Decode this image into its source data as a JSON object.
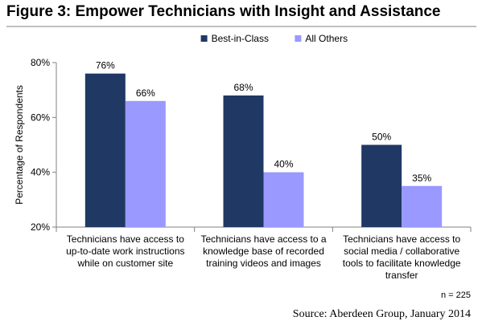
{
  "figure_title": "Figure 3: Empower Technicians with Insight and Assistance",
  "n_note": "n = 225",
  "source": "Source: Aberdeen Group, January 2014",
  "colors": {
    "best_in_class": "#1f3864",
    "all_others": "#9999ff"
  },
  "chart_data": {
    "type": "bar",
    "title": "",
    "ylabel": "Percentage of Respondents",
    "xlabel": "",
    "ylim": [
      20,
      80
    ],
    "yticks": [
      20,
      40,
      60,
      80
    ],
    "ytick_labels": [
      "20%",
      "40%",
      "60%",
      "80%"
    ],
    "grid": false,
    "legend": "top-center",
    "categories": [
      [
        "Technicians have access to",
        "up-to-date work instructions",
        "while on customer site"
      ],
      [
        "Technicians have access to a",
        "knowledge base of recorded",
        "training videos and images"
      ],
      [
        "Technicians have access to",
        "social media / collaborative",
        "tools to facilitate knowledge",
        "transfer"
      ]
    ],
    "series": [
      {
        "name": "Best-in-Class",
        "values": [
          76,
          68,
          50
        ],
        "labels": [
          "76%",
          "68%",
          "50%"
        ]
      },
      {
        "name": "All Others",
        "values": [
          66,
          40,
          35
        ],
        "labels": [
          "66%",
          "40%",
          "35%"
        ]
      }
    ]
  }
}
